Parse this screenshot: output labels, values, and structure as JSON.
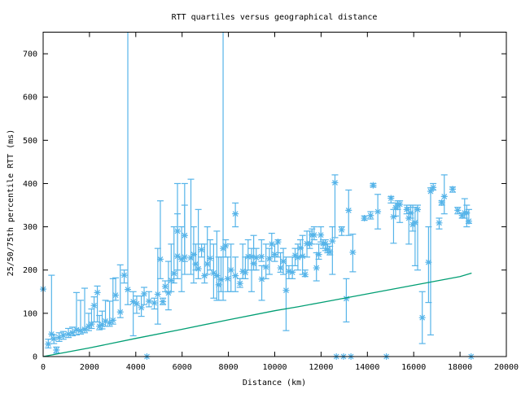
{
  "chart_data": {
    "type": "scatter",
    "title": "RTT quartiles versus geographical distance",
    "xlabel": "Distance (km)",
    "ylabel": "25/50/75th percentile RTT (ms)",
    "xlim": [
      0,
      20000
    ],
    "ylim": [
      0,
      750
    ],
    "xticks": [
      0,
      2000,
      4000,
      6000,
      8000,
      10000,
      12000,
      14000,
      16000,
      18000,
      20000
    ],
    "yticks": [
      0,
      100,
      200,
      300,
      400,
      500,
      600,
      700
    ],
    "grid": false,
    "legend": "none",
    "colors": {
      "points": "#56b4e9",
      "line": "#009e73"
    },
    "series": [
      {
        "type": "errorbars",
        "fields": [
          "distance_km",
          "median_ms",
          "p25_ms",
          "p75_ms"
        ],
        "points": [
          [
            0,
            156,
            156,
            156
          ],
          [
            222,
            29,
            20,
            40
          ],
          [
            363,
            52,
            40,
            188
          ],
          [
            465,
            41,
            30,
            50
          ],
          [
            574,
            15,
            8,
            22
          ],
          [
            690,
            44,
            35,
            55
          ],
          [
            870,
            49,
            40,
            58
          ],
          [
            1090,
            52,
            44,
            65
          ],
          [
            1265,
            55,
            48,
            68
          ],
          [
            1440,
            62,
            50,
            148
          ],
          [
            1617,
            60,
            52,
            130
          ],
          [
            1793,
            63,
            55,
            158
          ],
          [
            1968,
            70,
            60,
            100
          ],
          [
            2090,
            75,
            65,
            110
          ],
          [
            2200,
            118,
            80,
            138
          ],
          [
            2340,
            148,
            80,
            163
          ],
          [
            2430,
            70,
            62,
            95
          ],
          [
            2550,
            74,
            64,
            105
          ],
          [
            2690,
            82,
            70,
            130
          ],
          [
            2870,
            78,
            70,
            128
          ],
          [
            3015,
            84,
            75,
            180
          ],
          [
            3130,
            142,
            130,
            182
          ],
          [
            3330,
            103,
            90,
            212
          ],
          [
            3500,
            188,
            170,
            200
          ],
          [
            3656,
            155,
            120,
            1000
          ],
          [
            3890,
            127,
            48,
            150
          ],
          [
            4040,
            122,
            100,
            140
          ],
          [
            4240,
            113,
            93,
            140
          ],
          [
            4360,
            145,
            120,
            160
          ],
          [
            4480,
            0,
            0,
            0
          ],
          [
            4570,
            128,
            115,
            150
          ],
          [
            4800,
            124,
            110,
            135
          ],
          [
            4950,
            144,
            75,
            250
          ],
          [
            5060,
            225,
            180,
            360
          ],
          [
            5170,
            127,
            120,
            135
          ],
          [
            5270,
            162,
            150,
            175
          ],
          [
            5410,
            147,
            108,
            220
          ],
          [
            5530,
            176,
            150,
            260
          ],
          [
            5650,
            192,
            170,
            300
          ],
          [
            5800,
            290,
            200,
            400
          ],
          [
            5800,
            232,
            180,
            330
          ],
          [
            5980,
            225,
            150,
            300
          ],
          [
            6110,
            280,
            220,
            400
          ],
          [
            6110,
            230,
            190,
            350
          ],
          [
            6380,
            228,
            190,
            410
          ],
          [
            6500,
            236,
            170,
            300
          ],
          [
            6590,
            214,
            200,
            260
          ],
          [
            6700,
            203,
            180,
            340
          ],
          [
            6840,
            247,
            230,
            260
          ],
          [
            6970,
            187,
            170,
            260
          ],
          [
            7090,
            214,
            190,
            300
          ],
          [
            7210,
            227,
            200,
            270
          ],
          [
            7360,
            193,
            135,
            260
          ],
          [
            7500,
            187,
            130,
            290
          ],
          [
            7580,
            166,
            130,
            230
          ],
          [
            7680,
            178,
            150,
            230
          ],
          [
            7770,
            250,
            130,
            1000
          ],
          [
            7880,
            256,
            230,
            270
          ],
          [
            7970,
            180,
            150,
            230
          ],
          [
            8110,
            200,
            150,
            260
          ],
          [
            8300,
            330,
            300,
            355
          ],
          [
            8300,
            187,
            150,
            230
          ],
          [
            8500,
            169,
            160,
            180
          ],
          [
            8620,
            197,
            180,
            260
          ],
          [
            8730,
            194,
            180,
            230
          ],
          [
            8850,
            231,
            200,
            270
          ],
          [
            9000,
            231,
            150,
            250
          ],
          [
            9090,
            215,
            200,
            280
          ],
          [
            9200,
            229,
            200,
            250
          ],
          [
            9430,
            231,
            220,
            270
          ],
          [
            9440,
            179,
            130,
            210
          ],
          [
            9620,
            207,
            180,
            260
          ],
          [
            9770,
            226,
            190,
            250
          ],
          [
            9870,
            260,
            230,
            285
          ],
          [
            10000,
            236,
            220,
            260
          ],
          [
            10140,
            265,
            230,
            270
          ],
          [
            10250,
            205,
            195,
            240
          ],
          [
            10370,
            220,
            190,
            250
          ],
          [
            10490,
            153,
            60,
            230
          ],
          [
            10610,
            197,
            180,
            210
          ],
          [
            10760,
            195,
            180,
            230
          ],
          [
            10880,
            234,
            210,
            250
          ],
          [
            11000,
            229,
            200,
            260
          ],
          [
            11110,
            251,
            230,
            270
          ],
          [
            11200,
            232,
            190,
            280
          ],
          [
            11310,
            190,
            185,
            200
          ],
          [
            11390,
            261,
            230,
            290
          ],
          [
            11510,
            261,
            250,
            290
          ],
          [
            11610,
            281,
            260,
            295
          ],
          [
            11700,
            281,
            270,
            300
          ],
          [
            11800,
            205,
            175,
            240
          ],
          [
            11900,
            236,
            225,
            260
          ],
          [
            11990,
            281,
            265,
            300
          ],
          [
            12090,
            261,
            250,
            270
          ],
          [
            12190,
            261,
            245,
            270
          ],
          [
            12280,
            248,
            240,
            260
          ],
          [
            12380,
            242,
            235,
            255
          ],
          [
            12490,
            267,
            190,
            300
          ],
          [
            12600,
            402,
            275,
            420
          ],
          [
            12660,
            0,
            0,
            0
          ],
          [
            12890,
            293,
            280,
            300
          ],
          [
            12970,
            0,
            0,
            0
          ],
          [
            13090,
            134,
            80,
            180
          ],
          [
            13190,
            338,
            280,
            385
          ],
          [
            13290,
            0,
            0,
            0
          ],
          [
            13370,
            241,
            196,
            283
          ],
          [
            13870,
            320,
            315,
            325
          ],
          [
            14140,
            326,
            318,
            335
          ],
          [
            14250,
            396,
            392,
            400
          ],
          [
            14450,
            335,
            295,
            375
          ],
          [
            14820,
            0,
            0,
            0
          ],
          [
            15020,
            366,
            355,
            370
          ],
          [
            15130,
            323,
            262,
            340
          ],
          [
            15220,
            344,
            325,
            355
          ],
          [
            15310,
            350,
            340,
            360
          ],
          [
            15400,
            352,
            310,
            360
          ],
          [
            15700,
            340,
            330,
            350
          ],
          [
            15790,
            320,
            260,
            345
          ],
          [
            15870,
            332,
            320,
            350
          ],
          [
            15960,
            305,
            290,
            350
          ],
          [
            16060,
            310,
            210,
            345
          ],
          [
            16170,
            340,
            200,
            350
          ],
          [
            16370,
            90,
            30,
            150
          ],
          [
            16640,
            218,
            125,
            300
          ],
          [
            16730,
            382,
            50,
            390
          ],
          [
            16840,
            391,
            385,
            400
          ],
          [
            17100,
            309,
            295,
            320
          ],
          [
            17210,
            356,
            350,
            360
          ],
          [
            17320,
            370,
            330,
            420
          ],
          [
            17680,
            387,
            380,
            392
          ],
          [
            17900,
            338,
            330,
            345
          ],
          [
            18090,
            326,
            320,
            332
          ],
          [
            18200,
            332,
            320,
            365
          ],
          [
            18290,
            332,
            300,
            350
          ],
          [
            18380,
            313,
            308,
            340
          ],
          [
            18480,
            0,
            0,
            0
          ]
        ]
      },
      {
        "type": "line",
        "x": [
          0,
          2000,
          4000,
          6000,
          8000,
          10000,
          11000,
          12000,
          14000,
          16000,
          18000,
          18500
        ],
        "y": [
          0,
          20,
          42,
          63,
          85,
          106,
          115,
          125,
          145,
          165,
          185,
          193
        ]
      }
    ]
  }
}
